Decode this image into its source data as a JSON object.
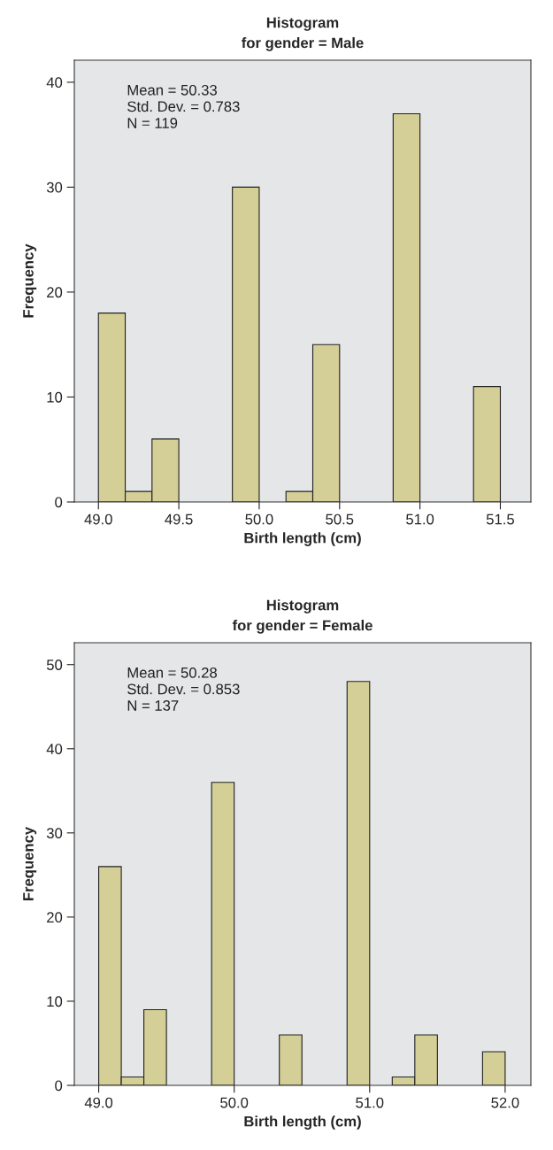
{
  "chart_data": [
    {
      "type": "histogram",
      "title": "Histogram\nfor gender = Male",
      "xlabel": "Birth length (cm)",
      "ylabel": "Frequency",
      "bins": [
        49.0,
        49.1667,
        49.3333,
        49.5,
        49.6667,
        49.8333,
        50.0,
        50.1667,
        50.3333,
        50.5,
        50.6667,
        50.8333,
        51.0,
        51.1667,
        51.3333,
        51.5
      ],
      "values": [
        18,
        1,
        6,
        0,
        0,
        30,
        0,
        1,
        15,
        0,
        0,
        37,
        0,
        0,
        11
      ],
      "color": "#d4cf96",
      "xlim": [
        48.85,
        51.69
      ],
      "ylim": [
        0,
        42.1
      ],
      "xticks": [
        {
          "value": 49.0,
          "label": "49.0"
        },
        49.5,
        {
          "value": 50.0,
          "label": "50.0"
        },
        50.5,
        {
          "value": 51.0,
          "label": "51.0"
        },
        51.5
      ],
      "yticks": [
        0,
        10,
        20,
        30,
        40
      ],
      "annotations": [
        "Mean = 50.33\nStd. Dev. = 0.783\nN = 119"
      ],
      "grid": false
    },
    {
      "type": "histogram",
      "title": "Histogram\nfor gender = Female",
      "xlabel": "Birth length (cm)",
      "ylabel": "Frequency",
      "bins": [
        49.0,
        49.1667,
        49.3333,
        49.5,
        49.6667,
        49.8333,
        50.0,
        50.1667,
        50.3333,
        50.5,
        50.6667,
        50.8333,
        51.0,
        51.1667,
        51.3333,
        51.5,
        51.6667,
        51.8333,
        52.0
      ],
      "values": [
        26,
        1,
        9,
        0,
        0,
        36,
        0,
        0,
        6,
        0,
        0,
        48,
        0,
        1,
        6,
        0,
        0,
        4
      ],
      "color": "#d4cf96",
      "xlim": [
        48.82,
        52.19
      ],
      "ylim": [
        0,
        52.6
      ],
      "xticks": [
        {
          "value": 49.0,
          "label": "49.0"
        },
        {
          "value": 50.0,
          "label": "50.0"
        },
        {
          "value": 51.0,
          "label": "51.0"
        },
        {
          "value": 52.0,
          "label": "52.0"
        }
      ],
      "yticks": [
        0,
        10,
        20,
        30,
        40,
        50
      ],
      "annotations": [
        "Mean = 50.28\nStd. Dev. = 0.853\nN = 137"
      ],
      "grid": false
    }
  ]
}
